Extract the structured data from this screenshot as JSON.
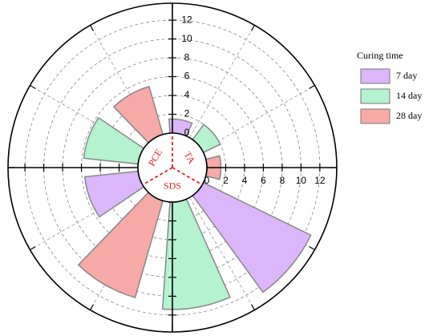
{
  "chart_data": {
    "type": "polar_bar",
    "categories": [
      "TA",
      "SDS",
      "PCE"
    ],
    "legend_title": "Curing time",
    "series": [
      {
        "name": "7 day",
        "color": "#dbb6fb",
        "values": [
          1.5,
          12.7,
          5.7
        ]
      },
      {
        "name": "14 day",
        "color": "#b5f2cf",
        "values": [
          2,
          11.4,
          5.8
        ]
      },
      {
        "name": "28 day",
        "color": "#f6a9a6",
        "values": [
          1.5,
          10.7,
          5.3
        ]
      }
    ],
    "rlim": [
      0,
      13.8
    ],
    "rticks": [
      0,
      2,
      4,
      6,
      8,
      10,
      12
    ],
    "grid": true
  }
}
